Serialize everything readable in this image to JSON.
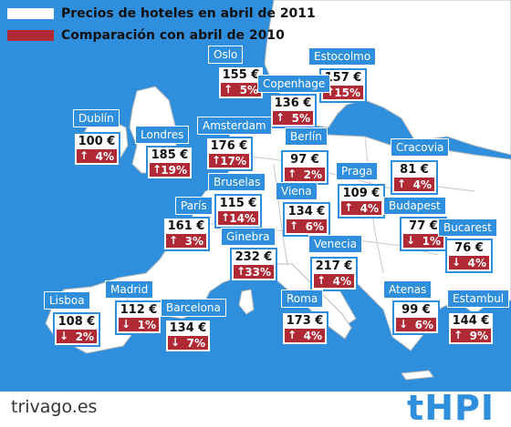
{
  "legend": {
    "current": "Precios de hoteles en abril de 2011",
    "comparison": "Comparación con abril de 2010",
    "colors": {
      "frame": "#2f8fdc",
      "change": "#b02a36"
    }
  },
  "cities": [
    {
      "name": "Oslo",
      "price": "155 €",
      "change": "5%",
      "direction": "up"
    },
    {
      "name": "Estocolmo",
      "price": "157 €",
      "change": "15%",
      "direction": "up"
    },
    {
      "name": "Copenhage",
      "price": "136 €",
      "change": "5%",
      "direction": "up"
    },
    {
      "name": "Dublín",
      "price": "100 €",
      "change": "4%",
      "direction": "up"
    },
    {
      "name": "Londres",
      "price": "185 €",
      "change": "19%",
      "direction": "up"
    },
    {
      "name": "Amsterdam",
      "price": "176 €",
      "change": "17%",
      "direction": "up"
    },
    {
      "name": "Berlín",
      "price": "97 €",
      "change": "2%",
      "direction": "up"
    },
    {
      "name": "Cracovia",
      "price": "81 €",
      "change": "4%",
      "direction": "up"
    },
    {
      "name": "Praga",
      "price": "109 €",
      "change": "4%",
      "direction": "up"
    },
    {
      "name": "Bruselas",
      "price": "115 €",
      "change": "14%",
      "direction": "up"
    },
    {
      "name": "Viena",
      "price": "134 €",
      "change": "6%",
      "direction": "up"
    },
    {
      "name": "París",
      "price": "161 €",
      "change": "3%",
      "direction": "up"
    },
    {
      "name": "Budapest",
      "price": "77 €",
      "change": "1%",
      "direction": "down"
    },
    {
      "name": "Bucarest",
      "price": "76 €",
      "change": "4%",
      "direction": "down"
    },
    {
      "name": "Ginebra",
      "price": "232 €",
      "change": "33%",
      "direction": "up"
    },
    {
      "name": "Venecia",
      "price": "217 €",
      "change": "4%",
      "direction": "up"
    },
    {
      "name": "Madrid",
      "price": "112 €",
      "change": "1%",
      "direction": "down"
    },
    {
      "name": "Lisboa",
      "price": "108 €",
      "change": "2%",
      "direction": "down"
    },
    {
      "name": "Barcelona",
      "price": "134 €",
      "change": "7%",
      "direction": "down"
    },
    {
      "name": "Roma",
      "price": "173 €",
      "change": "4%",
      "direction": "up"
    },
    {
      "name": "Atenas",
      "price": "99 €",
      "change": "6%",
      "direction": "down"
    },
    {
      "name": "Estambul",
      "price": "144 €",
      "change": "9%",
      "direction": "up"
    }
  ],
  "footer": {
    "source": "trivago.es",
    "logo": "tHPI"
  }
}
